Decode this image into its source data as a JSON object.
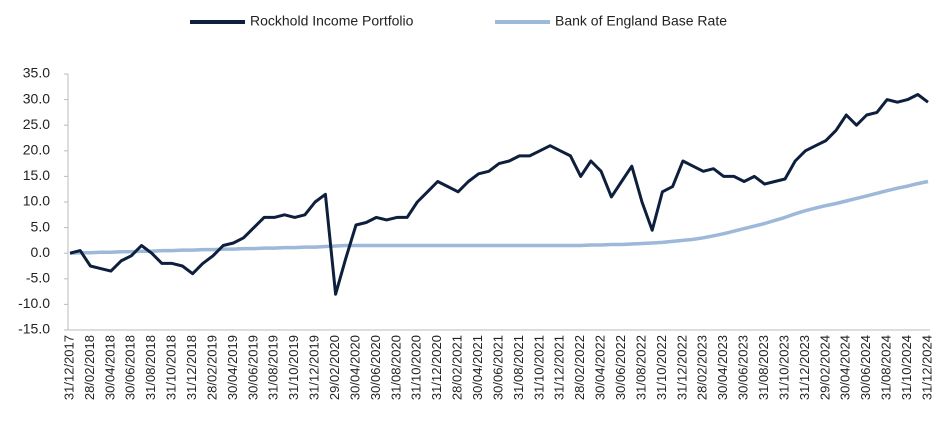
{
  "chart_data": {
    "type": "line",
    "categories": [
      "31/12/2017",
      null,
      "28/02/2018",
      null,
      "30/04/2018",
      null,
      "30/06/2018",
      null,
      "31/08/2018",
      null,
      "31/10/2018",
      null,
      "31/12/2018",
      null,
      "28/02/2019",
      null,
      "30/04/2019",
      null,
      "30/06/2019",
      null,
      "31/08/2019",
      null,
      "31/10/2019",
      null,
      "31/12/2019",
      null,
      "29/02/2020",
      null,
      "30/04/2020",
      null,
      "30/06/2020",
      null,
      "31/08/2020",
      null,
      "31/10/2020",
      null,
      "31/12/2020",
      null,
      "28/02/2021",
      null,
      "30/04/2021",
      null,
      "30/06/2021",
      null,
      "31/08/2021",
      null,
      "31/10/2021",
      null,
      "31/12/2021",
      null,
      "28/02/2022",
      null,
      "30/04/2022",
      null,
      "30/06/2022",
      null,
      "31/08/2022",
      null,
      "31/10/2022",
      null,
      "31/12/2022",
      null,
      "28/02/2023",
      null,
      "30/04/2023",
      null,
      "30/06/2023",
      null,
      "31/08/2023",
      null,
      "31/10/2023",
      null,
      "31/12/2023",
      null,
      "29/02/2024",
      null,
      "30/04/2024",
      null,
      "30/06/2024",
      null,
      "31/08/2024",
      null,
      "31/10/2024",
      null,
      "31/12/2024"
    ],
    "series": [
      {
        "name": "Rockhold Income Portfolio",
        "color": "#0d1f3c",
        "values": [
          0,
          0.5,
          -2.5,
          -3,
          -3.5,
          -1.5,
          -0.5,
          1.5,
          0,
          -2,
          -2,
          -2.5,
          -4,
          -2,
          -0.5,
          1.5,
          2,
          3,
          5,
          7,
          7,
          7.5,
          7,
          7.5,
          10,
          11.5,
          -8,
          -1,
          5.5,
          6,
          7,
          6.5,
          7,
          7,
          10,
          12,
          14,
          13,
          12,
          14,
          15.5,
          16,
          17.5,
          18,
          19,
          19,
          20,
          21,
          20,
          19,
          15,
          18,
          16,
          11,
          14,
          17,
          10,
          4.5,
          12,
          13,
          18,
          17,
          16,
          16.5,
          15,
          15,
          14,
          15,
          13.5,
          14,
          14.5,
          18,
          20,
          21,
          22,
          24,
          27,
          25,
          27,
          27.5,
          30,
          29.5,
          30,
          31,
          29.5
        ]
      },
      {
        "name": "Bank of England Base Rate",
        "color": "#9db8d9",
        "values": [
          0,
          0.1,
          0.1,
          0.2,
          0.2,
          0.3,
          0.3,
          0.4,
          0.4,
          0.5,
          0.5,
          0.6,
          0.6,
          0.7,
          0.7,
          0.8,
          0.8,
          0.9,
          0.9,
          1.0,
          1.0,
          1.1,
          1.1,
          1.2,
          1.2,
          1.3,
          1.4,
          1.5,
          1.5,
          1.5,
          1.5,
          1.5,
          1.5,
          1.5,
          1.5,
          1.5,
          1.5,
          1.5,
          1.5,
          1.5,
          1.5,
          1.5,
          1.5,
          1.5,
          1.5,
          1.5,
          1.5,
          1.5,
          1.5,
          1.5,
          1.5,
          1.6,
          1.6,
          1.7,
          1.7,
          1.8,
          1.9,
          2.0,
          2.1,
          2.3,
          2.5,
          2.7,
          3.0,
          3.4,
          3.8,
          4.3,
          4.8,
          5.3,
          5.8,
          6.4,
          7.0,
          7.7,
          8.3,
          8.8,
          9.3,
          9.7,
          10.2,
          10.7,
          11.2,
          11.7,
          12.2,
          12.7,
          13.1,
          13.6,
          14.0
        ]
      }
    ],
    "ylim": [
      -15,
      35
    ],
    "yticks": [
      {
        "value": -15,
        "label": "-15.0"
      },
      {
        "value": -10,
        "label": "-10.0"
      },
      {
        "value": -5,
        "label": "-5.0"
      },
      {
        "value": 0,
        "label": "0.0"
      },
      {
        "value": 5,
        "label": "5.0"
      },
      {
        "value": 10,
        "label": "10.0"
      },
      {
        "value": 15,
        "label": "15.0"
      },
      {
        "value": 20,
        "label": "20.0"
      },
      {
        "value": 25,
        "label": "25.0"
      },
      {
        "value": 30,
        "label": "30.0"
      },
      {
        "value": 35,
        "label": "35.0"
      }
    ],
    "grid": false,
    "legend": "top"
  }
}
